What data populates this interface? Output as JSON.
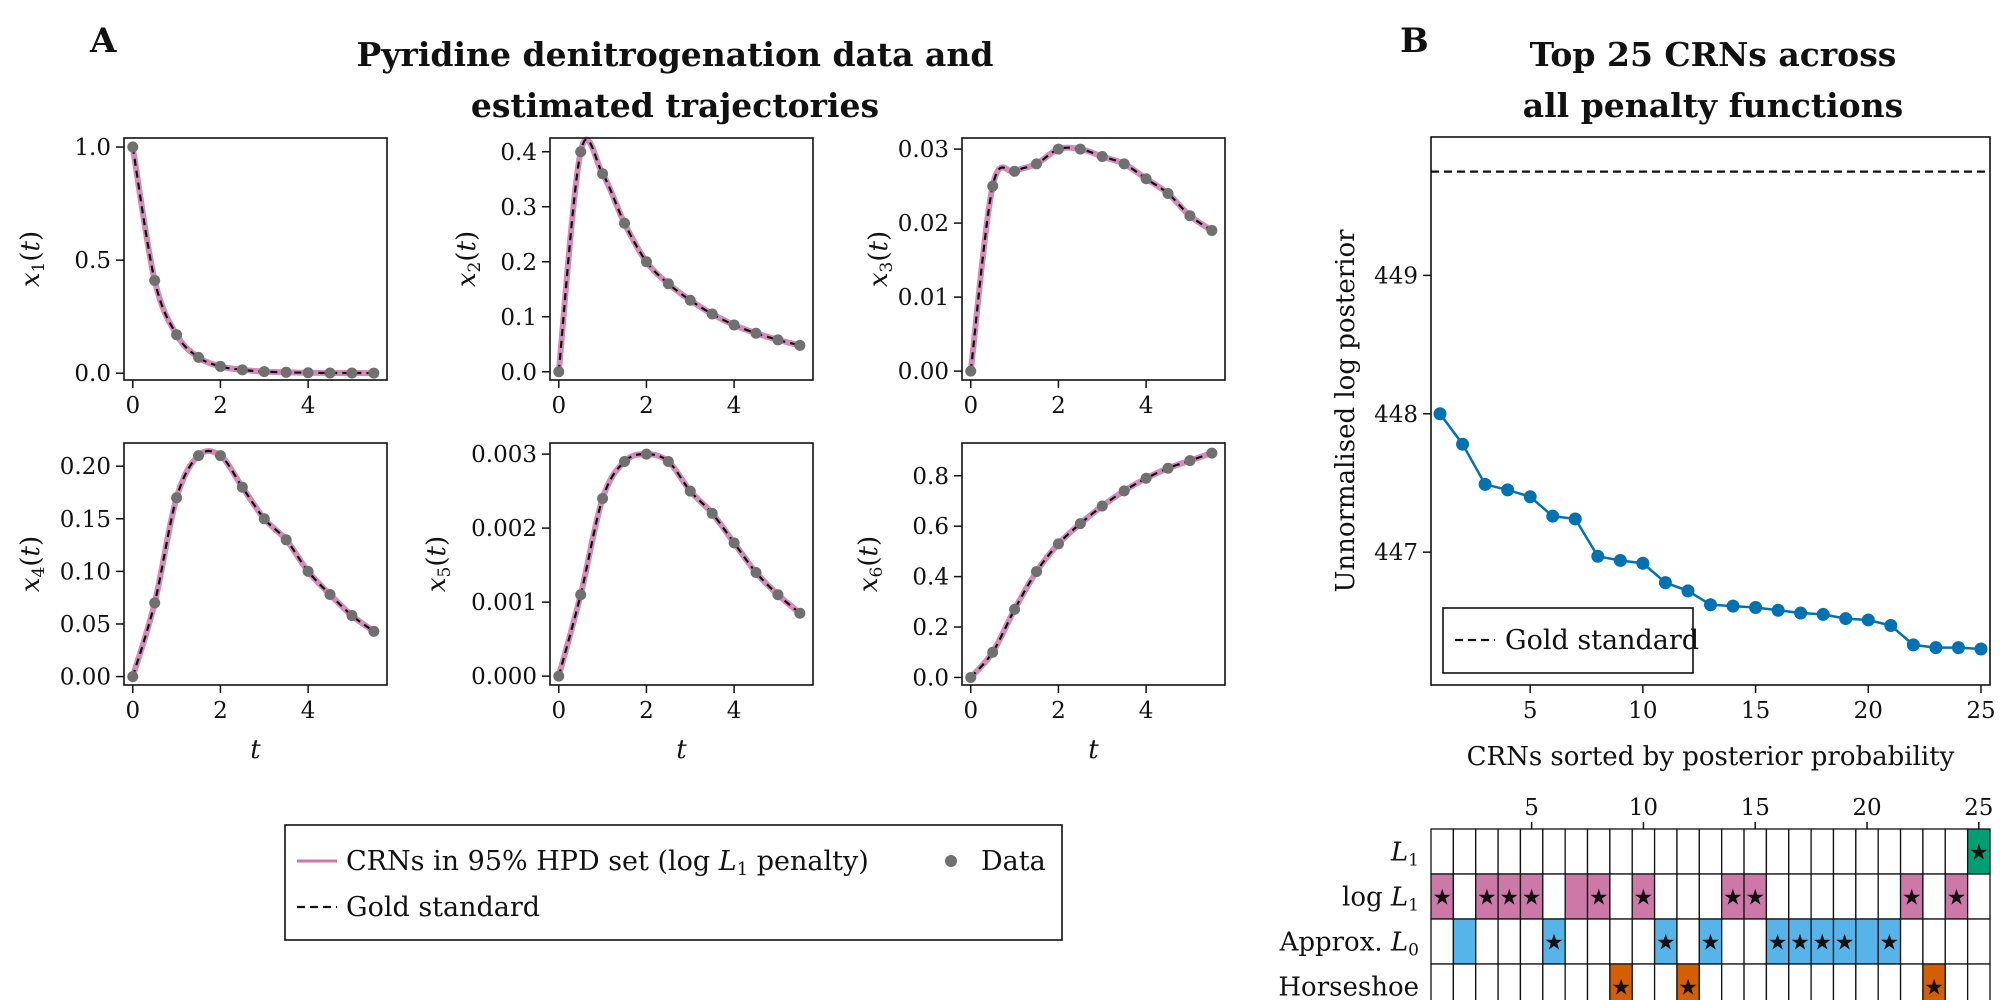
{
  "panel_a": {
    "letter": "A",
    "title_lines": [
      "Pyridine denitrogenation data and",
      "estimated trajectories"
    ],
    "xlabel": "t"
  },
  "panel_b": {
    "letter": "B",
    "title_lines": [
      "Top 25 CRNs across",
      "all penalty functions"
    ]
  },
  "legend_a": {
    "crn_label": "CRNs in 95% HPD set (log ",
    "crn_label_var": "L",
    "crn_label_sub": "1",
    "crn_label_end": " penalty)",
    "data_label": "Data",
    "gold_label": "Gold standard"
  },
  "colors": {
    "data_point": "#707070",
    "crn_line": "#cc79a7",
    "gold_line": "#111111",
    "posterior_line": "#0072b2",
    "l1": "#009e73",
    "log_l1": "#cc79a7",
    "approx_l0": "#56b4e9",
    "horseshoe": "#d55e00",
    "star": "#333333"
  },
  "chart_data": [
    {
      "type": "line",
      "ylabel": "x1(t)",
      "xlabel": "t",
      "x": [
        0,
        0.5,
        1,
        1.5,
        2,
        2.5,
        3,
        3.5,
        4,
        4.5,
        5,
        5.5
      ],
      "series": [
        {
          "name": "Data",
          "values": [
            1.0,
            0.41,
            0.17,
            0.07,
            0.03,
            0.015,
            0.007,
            0.004,
            0.002,
            0.001,
            0.001,
            0.0005
          ]
        }
      ],
      "xlim": [
        -0.2,
        5.8
      ],
      "ylim": [
        -0.03,
        1.04
      ],
      "xticks": [
        0,
        2,
        4
      ],
      "yticks": [
        0.0,
        0.5,
        1.0
      ],
      "ytick_labels": [
        "0.0",
        "0.5",
        "1.0"
      ]
    },
    {
      "type": "line",
      "ylabel": "x2(t)",
      "xlabel": "t",
      "x": [
        0,
        0.5,
        1,
        1.5,
        2,
        2.5,
        3,
        3.5,
        4,
        4.5,
        5,
        5.5
      ],
      "series": [
        {
          "name": "Data",
          "values": [
            0.0,
            0.4,
            0.36,
            0.27,
            0.2,
            0.16,
            0.13,
            0.105,
            0.085,
            0.07,
            0.058,
            0.048
          ]
        }
      ],
      "xlim": [
        -0.2,
        5.8
      ],
      "ylim": [
        -0.015,
        0.425
      ],
      "xticks": [
        0,
        2,
        4
      ],
      "yticks": [
        0.0,
        0.1,
        0.2,
        0.3,
        0.4
      ],
      "ytick_labels": [
        "0.0",
        "0.1",
        "0.2",
        "0.3",
        "0.4"
      ]
    },
    {
      "type": "line",
      "ylabel": "x3(t)",
      "xlabel": "t",
      "x": [
        0,
        0.5,
        1,
        1.5,
        2,
        2.5,
        3,
        3.5,
        4,
        4.5,
        5,
        5.5
      ],
      "series": [
        {
          "name": "Data",
          "values": [
            0.0,
            0.025,
            0.027,
            0.028,
            0.03,
            0.03,
            0.029,
            0.028,
            0.026,
            0.024,
            0.021,
            0.019
          ]
        }
      ],
      "xlim": [
        -0.2,
        5.8
      ],
      "ylim": [
        -0.0012,
        0.0315
      ],
      "xticks": [
        0,
        2,
        4
      ],
      "yticks": [
        0.0,
        0.01,
        0.02,
        0.03
      ],
      "ytick_labels": [
        "0.00",
        "0.01",
        "0.02",
        "0.03"
      ]
    },
    {
      "type": "line",
      "ylabel": "x4(t)",
      "xlabel": "t",
      "x": [
        0,
        0.5,
        1,
        1.5,
        2,
        2.5,
        3,
        3.5,
        4,
        4.5,
        5,
        5.5
      ],
      "series": [
        {
          "name": "Data",
          "values": [
            0.0,
            0.07,
            0.17,
            0.21,
            0.21,
            0.18,
            0.15,
            0.13,
            0.1,
            0.078,
            0.058,
            0.043
          ]
        }
      ],
      "xlim": [
        -0.2,
        5.8
      ],
      "ylim": [
        -0.008,
        0.222
      ],
      "xticks": [
        0,
        2,
        4
      ],
      "yticks": [
        0.0,
        0.05,
        0.1,
        0.15,
        0.2
      ],
      "ytick_labels": [
        "0.00",
        "0.05",
        "0.10",
        "0.15",
        "0.20"
      ]
    },
    {
      "type": "line",
      "ylabel": "x5(t)",
      "xlabel": "t",
      "x": [
        0,
        0.5,
        1,
        1.5,
        2,
        2.5,
        3,
        3.5,
        4,
        4.5,
        5,
        5.5
      ],
      "series": [
        {
          "name": "Data",
          "values": [
            0.0,
            0.0011,
            0.0024,
            0.0029,
            0.003,
            0.0029,
            0.0025,
            0.0022,
            0.0018,
            0.0014,
            0.0011,
            0.00085
          ]
        }
      ],
      "xlim": [
        -0.2,
        5.8
      ],
      "ylim": [
        -0.00012,
        0.00315
      ],
      "xticks": [
        0,
        2,
        4
      ],
      "yticks": [
        0.0,
        0.001,
        0.002,
        0.003
      ],
      "ytick_labels": [
        "0.000",
        "0.001",
        "0.002",
        "0.003"
      ]
    },
    {
      "type": "line",
      "ylabel": "x6(t)",
      "xlabel": "t",
      "x": [
        0,
        0.5,
        1,
        1.5,
        2,
        2.5,
        3,
        3.5,
        4,
        4.5,
        5,
        5.5
      ],
      "series": [
        {
          "name": "Data",
          "values": [
            0.0,
            0.1,
            0.27,
            0.42,
            0.53,
            0.61,
            0.68,
            0.74,
            0.79,
            0.83,
            0.86,
            0.89
          ]
        }
      ],
      "xlim": [
        -0.2,
        5.8
      ],
      "ylim": [
        -0.03,
        0.93
      ],
      "xticks": [
        0,
        2,
        4
      ],
      "yticks": [
        0.0,
        0.2,
        0.4,
        0.6,
        0.8
      ],
      "ytick_labels": [
        "0.0",
        "0.2",
        "0.4",
        "0.6",
        "0.8"
      ]
    },
    {
      "type": "line",
      "title": "Top 25 CRNs across all penalty functions",
      "xlabel": "CRNs sorted by posterior probability",
      "ylabel": "Unnormalised log posterior",
      "x": [
        1,
        2,
        3,
        4,
        5,
        6,
        7,
        8,
        9,
        10,
        11,
        12,
        13,
        14,
        15,
        16,
        17,
        18,
        19,
        20,
        21,
        22,
        23,
        24,
        25
      ],
      "series": [
        {
          "values": [
            448.0,
            447.78,
            447.49,
            447.45,
            447.4,
            447.26,
            447.24,
            446.97,
            446.94,
            446.92,
            446.78,
            446.72,
            446.62,
            446.61,
            446.6,
            446.58,
            446.56,
            446.55,
            446.52,
            446.51,
            446.47,
            446.33,
            446.31,
            446.31,
            446.3
          ]
        }
      ],
      "reference_lines": [
        {
          "name": "Gold standard",
          "y": 449.75,
          "style": "dashed"
        }
      ],
      "legend_position": "lower-left",
      "xlim": [
        0.6,
        25.4
      ],
      "ylim": [
        446.04,
        450.0
      ],
      "xticks": [
        5,
        10,
        15,
        20,
        25
      ],
      "yticks": [
        447,
        448,
        449
      ],
      "ytick_labels": [
        "447",
        "448",
        "449"
      ]
    },
    {
      "type": "heatmap",
      "x": [
        1,
        2,
        3,
        4,
        5,
        6,
        7,
        8,
        9,
        10,
        11,
        12,
        13,
        14,
        15,
        16,
        17,
        18,
        19,
        20,
        21,
        22,
        23,
        24,
        25
      ],
      "xticks": [
        5,
        10,
        15,
        20,
        25
      ],
      "rows": [
        {
          "key": "l1",
          "label_text": "",
          "label_var": "L",
          "label_sub": "1",
          "filled": [
            25
          ],
          "starred": [
            25
          ]
        },
        {
          "key": "log_l1",
          "label_text": "log ",
          "label_var": "L",
          "label_sub": "1",
          "filled": [
            1,
            3,
            4,
            5,
            7,
            8,
            10,
            14,
            15,
            22,
            24
          ],
          "starred": [
            1,
            3,
            4,
            5,
            8,
            10,
            14,
            15,
            22,
            24
          ]
        },
        {
          "key": "approx_l0",
          "label_text": "Approx. ",
          "label_var": "L",
          "label_sub": "0",
          "filled": [
            2,
            6,
            11,
            13,
            16,
            17,
            18,
            19,
            20,
            21
          ],
          "starred": [
            6,
            11,
            13,
            16,
            17,
            18,
            19,
            21
          ]
        },
        {
          "key": "horseshoe",
          "label_text": "Horseshoe",
          "label_var": "",
          "label_sub": "",
          "filled": [
            9,
            12,
            23
          ],
          "starred": [
            9,
            12,
            23
          ]
        }
      ]
    }
  ]
}
